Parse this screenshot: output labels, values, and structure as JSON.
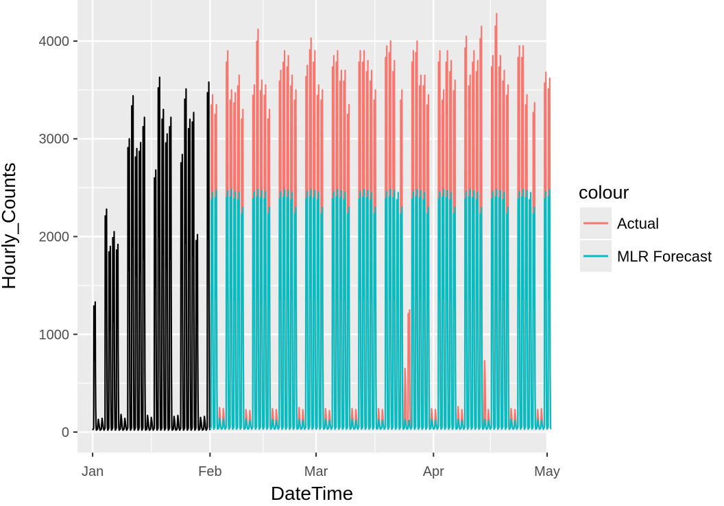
{
  "chart_data": {
    "type": "line",
    "title": "",
    "xlabel": "DateTime",
    "ylabel": "Hourly_Counts",
    "x_ticks": [
      "Jan",
      "Feb",
      "Mar",
      "Apr",
      "May"
    ],
    "x_tick_dates": [
      "2018-01-01",
      "2018-02-01",
      "2018-03-01",
      "2018-04-01",
      "2018-05-01"
    ],
    "xlim": [
      "2017-12-28",
      "2018-05-01"
    ],
    "y_ticks": [
      0,
      1000,
      2000,
      3000,
      4000
    ],
    "ylim": [
      -210,
      4420
    ],
    "grid": true,
    "legend": {
      "title": "colour",
      "position": "right",
      "entries": [
        {
          "name": "Actual",
          "color": "#F8766D"
        },
        {
          "name": "MLR Forecast",
          "color": "#00BFC4"
        }
      ]
    },
    "series": [
      {
        "key": "training",
        "color": "#000000",
        "start": "2018-01-01",
        "end": "2018-01-31",
        "min_value": 20,
        "daily_peaks": [
          1330,
          130,
          140,
          2280,
          1900,
          2050,
          1920,
          180,
          140,
          3000,
          3440,
          2900,
          2960,
          3220,
          170,
          150,
          2680,
          3630,
          3300,
          3050,
          3220,
          160,
          170,
          2840,
          3510,
          3200,
          3270,
          2020,
          150,
          160,
          3580
        ]
      },
      {
        "name": "Actual",
        "color": "#F8766D",
        "start": "2018-02-01",
        "end": "2018-04-30",
        "min_value": 30,
        "daily_peaks": [
          3450,
          3350,
          250,
          240,
          3900,
          3500,
          3470,
          3650,
          3300,
          230,
          220,
          3550,
          4120,
          3600,
          3550,
          3300,
          240,
          230,
          3700,
          3900,
          3850,
          3650,
          3500,
          250,
          230,
          3750,
          4030,
          3900,
          3550,
          3500,
          240,
          220,
          3850,
          3900,
          3700,
          3700,
          3350,
          240,
          230,
          3900,
          3900,
          3800,
          3700,
          3500,
          240,
          230,
          3950,
          4000,
          3800,
          2200,
          3500,
          650,
          1250,
          3900,
          4000,
          3650,
          3650,
          3450,
          240,
          230,
          3900,
          3500,
          3900,
          3800,
          3600,
          260,
          230,
          4050,
          3650,
          3900,
          3800,
          4150,
          730,
          230,
          3850,
          4280,
          3850,
          3700,
          3550,
          240,
          230,
          3950,
          3950,
          3450,
          2300,
          3370,
          230,
          240,
          3680,
          3620
        ]
      },
      {
        "name": "MLR Forecast",
        "color": "#00BFC4",
        "start": "2018-02-01",
        "end": "2018-04-30",
        "min_value": 30,
        "daily_peaks": [
          2450,
          2470,
          140,
          130,
          2470,
          2480,
          2460,
          2450,
          2300,
          130,
          120,
          2460,
          2480,
          2470,
          2460,
          2300,
          130,
          120,
          2460,
          2480,
          2470,
          2450,
          2300,
          130,
          120,
          2460,
          2480,
          2470,
          2450,
          2300,
          130,
          120,
          2460,
          2480,
          2470,
          2450,
          2300,
          130,
          120,
          2460,
          2480,
          2470,
          2450,
          2300,
          130,
          120,
          2460,
          2480,
          2470,
          2450,
          2300,
          130,
          120,
          2460,
          2480,
          2470,
          2450,
          2300,
          130,
          120,
          2460,
          2480,
          2470,
          2450,
          2300,
          130,
          120,
          2460,
          2480,
          2470,
          2450,
          2300,
          130,
          120,
          2460,
          2480,
          2470,
          2450,
          2300,
          130,
          120,
          2460,
          2480,
          2470,
          2450,
          2300,
          130,
          120,
          2460,
          2480
        ]
      }
    ]
  }
}
